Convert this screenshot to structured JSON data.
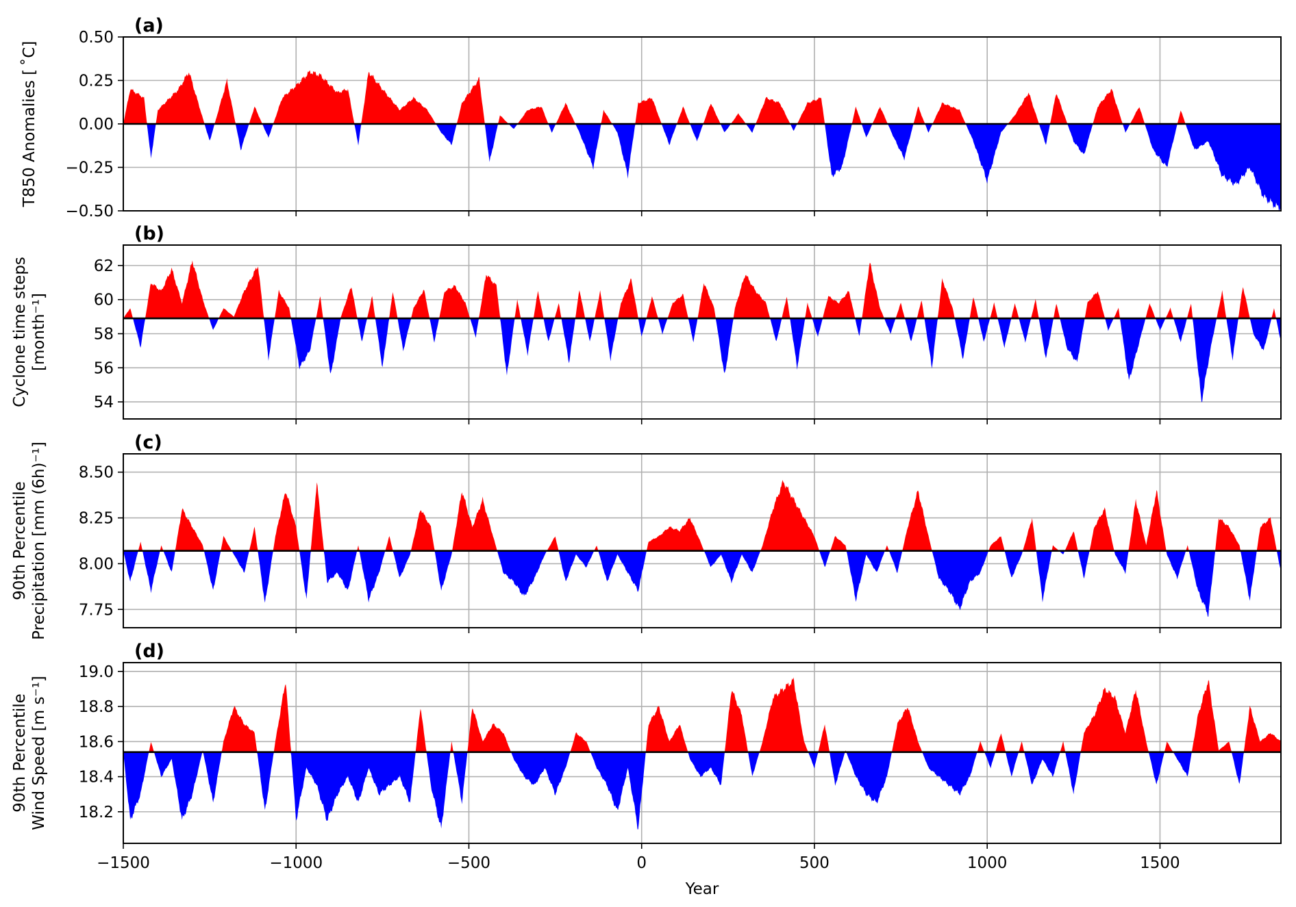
{
  "chart_data": [
    {
      "type": "area",
      "panel_label": "(a)",
      "ylabel": [
        "T850 Anomalies [ ˚C]"
      ],
      "xlabel": "",
      "xlim": [
        -1500,
        1850
      ],
      "ylim": [
        -0.5,
        0.5
      ],
      "yticks": [
        -0.5,
        -0.25,
        0.0,
        0.25,
        0.5
      ],
      "ytick_labels": [
        "−0.50",
        "−0.25",
        "0.00",
        "0.25",
        "0.50"
      ],
      "xticks": [
        -1000,
        -500,
        0,
        500,
        1000,
        1500
      ],
      "baseline": 0.0,
      "above_color": "#ff0000",
      "below_color": "#0000ff",
      "grid": true,
      "x": [
        -1480,
        -1440,
        -1420,
        -1400,
        -1380,
        -1340,
        -1310,
        -1280,
        -1250,
        -1200,
        -1160,
        -1120,
        -1080,
        -1040,
        -1000,
        -960,
        -930,
        -880,
        -850,
        -820,
        -790,
        -750,
        -700,
        -660,
        -620,
        -580,
        -550,
        -520,
        -470,
        -440,
        -410,
        -370,
        -330,
        -290,
        -260,
        -220,
        -180,
        -140,
        -110,
        -70,
        -40,
        -10,
        30,
        80,
        120,
        160,
        200,
        240,
        280,
        320,
        360,
        400,
        440,
        480,
        520,
        550,
        580,
        620,
        650,
        690,
        730,
        760,
        800,
        830,
        870,
        920,
        960,
        1000,
        1040,
        1080,
        1120,
        1170,
        1200,
        1250,
        1280,
        1320,
        1360,
        1400,
        1440,
        1480,
        1520,
        1560,
        1600,
        1640,
        1680,
        1720,
        1760,
        1800,
        1840
      ],
      "y": [
        0.2,
        0.15,
        -0.2,
        0.08,
        0.12,
        0.2,
        0.3,
        0.1,
        -0.1,
        0.25,
        -0.15,
        0.1,
        -0.08,
        0.15,
        0.22,
        0.3,
        0.28,
        0.18,
        0.2,
        -0.12,
        0.3,
        0.2,
        0.08,
        0.15,
        0.08,
        -0.05,
        -0.12,
        0.12,
        0.26,
        -0.22,
        0.05,
        -0.03,
        0.08,
        0.1,
        -0.05,
        0.12,
        -0.05,
        -0.25,
        0.08,
        -0.05,
        -0.3,
        0.12,
        0.15,
        -0.12,
        0.1,
        -0.1,
        0.12,
        -0.05,
        0.06,
        -0.05,
        0.15,
        0.12,
        -0.04,
        0.12,
        0.15,
        -0.3,
        -0.25,
        0.1,
        -0.08,
        0.1,
        -0.08,
        -0.2,
        0.1,
        -0.05,
        0.12,
        0.08,
        -0.1,
        -0.33,
        -0.05,
        0.05,
        0.18,
        -0.12,
        0.18,
        -0.1,
        -0.18,
        0.1,
        0.2,
        -0.05,
        0.1,
        -0.15,
        -0.25,
        0.08,
        -0.15,
        -0.1,
        -0.3,
        -0.35,
        -0.25,
        -0.42,
        -0.48
      ]
    },
    {
      "type": "area",
      "panel_label": "(b)",
      "ylabel": [
        "Cyclone time steps",
        "[month⁻¹]"
      ],
      "xlabel": "",
      "xlim": [
        -1500,
        1850
      ],
      "ylim": [
        53,
        63.2
      ],
      "yticks": [
        54,
        56,
        58,
        60,
        62
      ],
      "ytick_labels": [
        "54",
        "56",
        "58",
        "60",
        "62"
      ],
      "xticks": [
        -1000,
        -500,
        0,
        500,
        1000,
        1500
      ],
      "baseline": 58.9,
      "above_color": "#ff0000",
      "below_color": "#0000ff",
      "grid": true,
      "x": [
        -1480,
        -1450,
        -1420,
        -1390,
        -1360,
        -1330,
        -1300,
        -1270,
        -1240,
        -1210,
        -1180,
        -1150,
        -1110,
        -1080,
        -1050,
        -1020,
        -990,
        -960,
        -930,
        -900,
        -870,
        -840,
        -810,
        -780,
        -750,
        -720,
        -690,
        -660,
        -630,
        -600,
        -570,
        -540,
        -510,
        -480,
        -450,
        -420,
        -390,
        -360,
        -330,
        -300,
        -270,
        -240,
        -210,
        -180,
        -150,
        -120,
        -90,
        -60,
        -30,
        0,
        30,
        60,
        90,
        120,
        150,
        180,
        210,
        240,
        270,
        300,
        330,
        360,
        390,
        420,
        450,
        480,
        510,
        540,
        570,
        600,
        630,
        660,
        690,
        720,
        750,
        780,
        810,
        840,
        870,
        900,
        930,
        960,
        990,
        1020,
        1050,
        1080,
        1110,
        1140,
        1170,
        1200,
        1230,
        1260,
        1290,
        1320,
        1350,
        1380,
        1410,
        1440,
        1470,
        1500,
        1530,
        1560,
        1590,
        1620,
        1650,
        1680,
        1710,
        1740,
        1770,
        1800,
        1830,
        1850
      ],
      "y": [
        59.5,
        57.2,
        61,
        60.5,
        61.8,
        59.8,
        62.3,
        60,
        58.2,
        59.5,
        59,
        60.5,
        62,
        56.5,
        60.5,
        59.5,
        56,
        57,
        60.2,
        55.5,
        59,
        60.8,
        57.5,
        60.2,
        56,
        60.5,
        57,
        59.5,
        60.6,
        57.5,
        60.5,
        60.8,
        59.8,
        57.8,
        61.5,
        60.8,
        55.5,
        60,
        56.8,
        60.5,
        57.5,
        59.8,
        56.3,
        60.6,
        57.5,
        60.5,
        56.5,
        59.8,
        61.2,
        57.8,
        60.2,
        58,
        59.8,
        60.3,
        57.5,
        61,
        59.5,
        55.5,
        59.5,
        61.5,
        60.5,
        59.8,
        57.5,
        60.2,
        56,
        59.8,
        57.8,
        60.2,
        59.8,
        60.5,
        57.8,
        62.2,
        59.5,
        58,
        59.8,
        57.5,
        60,
        56,
        61.2,
        59.5,
        56.5,
        60.2,
        57.5,
        59.8,
        57.2,
        59.8,
        57.5,
        60,
        56.5,
        59.8,
        57.2,
        56.3,
        59.8,
        60.5,
        58.2,
        59.5,
        55.2,
        57.5,
        59.8,
        58.2,
        59.5,
        57.5,
        59.8,
        54,
        57.5,
        60.5,
        56.5,
        60.8,
        58,
        57,
        59.5,
        57.5
      ]
    },
    {
      "type": "area",
      "panel_label": "(c)",
      "ylabel": [
        "90th Percentile",
        "Precipitation [mm (6h)⁻¹]"
      ],
      "xlabel": "",
      "xlim": [
        -1500,
        1850
      ],
      "ylim": [
        7.65,
        8.6
      ],
      "yticks": [
        7.75,
        8.0,
        8.25,
        8.5
      ],
      "ytick_labels": [
        "7.75",
        "8.00",
        "8.25",
        "8.50"
      ],
      "xticks": [
        -1000,
        -500,
        0,
        500,
        1000,
        1500
      ],
      "baseline": 8.07,
      "above_color": "#ff0000",
      "below_color": "#0000ff",
      "grid": true,
      "x": [
        -1480,
        -1450,
        -1420,
        -1390,
        -1360,
        -1330,
        -1300,
        -1270,
        -1240,
        -1210,
        -1180,
        -1150,
        -1120,
        -1090,
        -1060,
        -1030,
        -1000,
        -970,
        -940,
        -910,
        -880,
        -850,
        -820,
        -790,
        -760,
        -730,
        -700,
        -670,
        -640,
        -610,
        -580,
        -550,
        -520,
        -490,
        -460,
        -430,
        -400,
        -370,
        -340,
        -310,
        -280,
        -250,
        -220,
        -190,
        -160,
        -130,
        -100,
        -70,
        -40,
        -10,
        20,
        50,
        80,
        110,
        140,
        170,
        200,
        230,
        260,
        290,
        320,
        350,
        380,
        410,
        440,
        470,
        500,
        530,
        560,
        590,
        620,
        650,
        680,
        710,
        740,
        770,
        800,
        830,
        860,
        890,
        920,
        950,
        980,
        1010,
        1040,
        1070,
        1100,
        1130,
        1160,
        1190,
        1220,
        1250,
        1280,
        1310,
        1340,
        1370,
        1400,
        1430,
        1460,
        1490,
        1520,
        1550,
        1580,
        1610,
        1640,
        1670,
        1700,
        1730,
        1760,
        1790,
        1820,
        1850
      ],
      "y": [
        7.9,
        8.12,
        7.85,
        8.1,
        7.95,
        8.3,
        8.2,
        8.1,
        7.85,
        8.15,
        8.05,
        7.95,
        8.2,
        7.78,
        8.15,
        8.4,
        8.2,
        7.8,
        8.45,
        7.9,
        7.95,
        7.85,
        8.1,
        7.8,
        7.95,
        8.15,
        7.92,
        8.05,
        8.3,
        8.2,
        7.85,
        8.05,
        8.4,
        8.2,
        8.35,
        8.15,
        7.95,
        7.9,
        7.82,
        7.92,
        8.05,
        8.15,
        7.9,
        8.05,
        7.98,
        8.1,
        7.9,
        8.05,
        7.95,
        7.85,
        8.12,
        8.15,
        8.2,
        8.18,
        8.25,
        8.12,
        7.98,
        8.05,
        7.9,
        8.05,
        7.95,
        8.1,
        8.3,
        8.45,
        8.35,
        8.25,
        8.15,
        7.98,
        8.15,
        8.1,
        7.8,
        8.05,
        7.95,
        8.1,
        7.95,
        8.2,
        8.4,
        8.15,
        7.92,
        7.85,
        7.75,
        7.9,
        7.95,
        8.1,
        8.15,
        7.92,
        8.05,
        8.25,
        7.8,
        8.1,
        8.05,
        8.18,
        7.92,
        8.2,
        8.3,
        8.05,
        7.95,
        8.35,
        8.1,
        8.4,
        8.05,
        7.92,
        8.1,
        7.85,
        7.72,
        8.25,
        8.2,
        8.1,
        7.8,
        8.2,
        8.25,
        7.95
      ]
    },
    {
      "type": "area",
      "panel_label": "(d)",
      "ylabel": [
        "90th Percentile",
        "Wind Speed [m s⁻¹]"
      ],
      "xlabel": "Year",
      "xlim": [
        -1500,
        1850
      ],
      "ylim": [
        18.02,
        19.05
      ],
      "yticks": [
        18.2,
        18.4,
        18.6,
        18.8,
        19.0
      ],
      "ytick_labels": [
        "18.2",
        "18.4",
        "18.6",
        "18.8",
        "19.0"
      ],
      "xticks": [
        -1500,
        -1000,
        -500,
        0,
        500,
        1000,
        1500
      ],
      "xtick_labels": [
        "−1500",
        "−1000",
        "−500",
        "0",
        "500",
        "1000",
        "1500"
      ],
      "baseline": 18.54,
      "above_color": "#ff0000",
      "below_color": "#0000ff",
      "grid": true,
      "x": [
        -1480,
        -1450,
        -1420,
        -1390,
        -1360,
        -1330,
        -1300,
        -1270,
        -1240,
        -1210,
        -1180,
        -1150,
        -1120,
        -1090,
        -1060,
        -1030,
        -1000,
        -970,
        -940,
        -910,
        -880,
        -850,
        -820,
        -790,
        -760,
        -730,
        -700,
        -670,
        -640,
        -610,
        -580,
        -550,
        -520,
        -490,
        -460,
        -430,
        -400,
        -370,
        -340,
        -310,
        -280,
        -250,
        -220,
        -190,
        -160,
        -130,
        -100,
        -70,
        -40,
        -10,
        20,
        50,
        80,
        110,
        140,
        170,
        200,
        230,
        260,
        290,
        320,
        350,
        380,
        410,
        440,
        470,
        500,
        530,
        560,
        590,
        620,
        650,
        680,
        710,
        740,
        770,
        800,
        830,
        860,
        890,
        920,
        950,
        980,
        1010,
        1040,
        1070,
        1100,
        1130,
        1160,
        1190,
        1220,
        1250,
        1280,
        1310,
        1340,
        1370,
        1400,
        1430,
        1460,
        1490,
        1520,
        1550,
        1580,
        1610,
        1640,
        1670,
        1700,
        1730,
        1760,
        1790,
        1820,
        1850
      ],
      "y": [
        18.15,
        18.3,
        18.6,
        18.4,
        18.5,
        18.15,
        18.3,
        18.55,
        18.25,
        18.6,
        18.8,
        18.7,
        18.65,
        18.2,
        18.6,
        18.95,
        18.15,
        18.45,
        18.35,
        18.15,
        18.3,
        18.4,
        18.25,
        18.45,
        18.3,
        18.35,
        18.4,
        18.25,
        18.8,
        18.35,
        18.1,
        18.6,
        18.25,
        18.8,
        18.6,
        18.7,
        18.65,
        18.5,
        18.4,
        18.35,
        18.45,
        18.3,
        18.45,
        18.65,
        18.6,
        18.45,
        18.35,
        18.2,
        18.45,
        18.1,
        18.7,
        18.8,
        18.6,
        18.7,
        18.5,
        18.4,
        18.45,
        18.35,
        18.9,
        18.75,
        18.4,
        18.6,
        18.85,
        18.9,
        18.95,
        18.6,
        18.45,
        18.7,
        18.35,
        18.55,
        18.4,
        18.3,
        18.25,
        18.4,
        18.7,
        18.8,
        18.6,
        18.45,
        18.4,
        18.35,
        18.3,
        18.4,
        18.6,
        18.45,
        18.65,
        18.4,
        18.6,
        18.35,
        18.5,
        18.4,
        18.6,
        18.3,
        18.65,
        18.75,
        18.9,
        18.85,
        18.65,
        18.9,
        18.6,
        18.35,
        18.6,
        18.5,
        18.4,
        18.75,
        18.95,
        18.55,
        18.6,
        18.35,
        18.8,
        18.6,
        18.65,
        18.6
      ]
    }
  ]
}
